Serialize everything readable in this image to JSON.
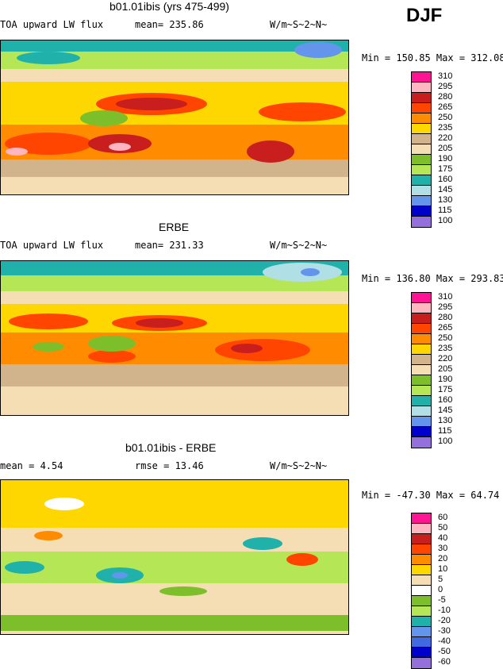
{
  "season": "DJF",
  "panels": [
    {
      "title": "b01.01ibis (yrs 475-499)",
      "left_label": "TOA upward LW flux",
      "mid_label": "mean= 235.86",
      "units": "W/m~S~2~N~",
      "minmax": "Min = 150.85 Max = 312.08",
      "levels": [
        "310",
        "295",
        "280",
        "265",
        "250",
        "235",
        "220",
        "205",
        "190",
        "175",
        "160",
        "145",
        "130",
        "115",
        "100"
      ],
      "colors": [
        "#ff1493",
        "#ffb6c1",
        "#c81e1e",
        "#ff4500",
        "#ff8c00",
        "#ffd700",
        "#d2b48c",
        "#f5deb3",
        "#7cbf2a",
        "#b5e655",
        "#20b2aa",
        "#b0e0e6",
        "#6495ed",
        "#0000cd",
        "#9370db"
      ]
    },
    {
      "title": "ERBE",
      "left_label": "TOA upward LW flux",
      "mid_label": "mean= 231.33",
      "units": "W/m~S~2~N~",
      "minmax": "Min = 136.80 Max = 293.83",
      "levels": [
        "310",
        "295",
        "280",
        "265",
        "250",
        "235",
        "220",
        "205",
        "190",
        "175",
        "160",
        "145",
        "130",
        "115",
        "100"
      ],
      "colors": [
        "#ff1493",
        "#ffb6c1",
        "#c81e1e",
        "#ff4500",
        "#ff8c00",
        "#ffd700",
        "#d2b48c",
        "#f5deb3",
        "#7cbf2a",
        "#b5e655",
        "#20b2aa",
        "#b0e0e6",
        "#6495ed",
        "#0000cd",
        "#9370db"
      ]
    },
    {
      "title": "b01.01ibis - ERBE",
      "left_label": "mean =    4.54",
      "mid_label": "rmse =   13.46",
      "units": "W/m~S~2~N~",
      "minmax": "Min = -47.30 Max =  64.74",
      "levels": [
        "60",
        "50",
        "40",
        "30",
        "20",
        "10",
        "5",
        "0",
        "-5",
        "-10",
        "-20",
        "-30",
        "-40",
        "-50",
        "-60"
      ],
      "colors": [
        "#ff1493",
        "#ffb6c1",
        "#c81e1e",
        "#ff4500",
        "#ff8c00",
        "#ffd700",
        "#f5deb3",
        "#ffffff",
        "#7cbf2a",
        "#b5e655",
        "#20b2aa",
        "#6495ed",
        "#4169e1",
        "#0000cd",
        "#9370db"
      ]
    }
  ]
}
